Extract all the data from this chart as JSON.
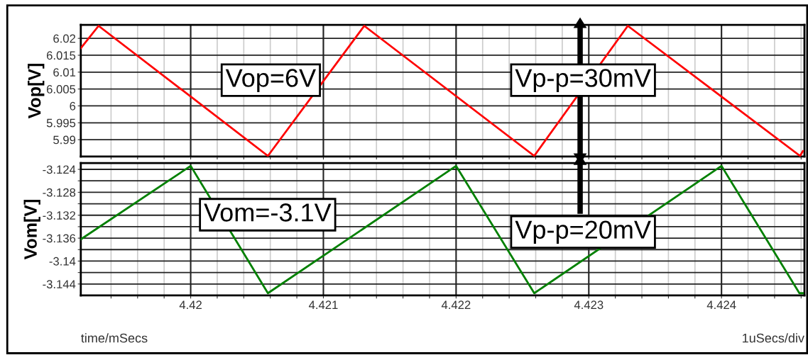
{
  "chart_data": [
    {
      "type": "line",
      "ylabel": "Vop[V]",
      "tick_labels": "y",
      "grid": true,
      "marker": "none",
      "line_style": "solid",
      "xlim": [
        4.419172,
        4.424625
      ],
      "ylim": [
        5.985,
        6.024
      ],
      "xticks": [
        {
          "value": 4.4194,
          "label": null
        },
        {
          "value": 4.4196,
          "label": null
        },
        {
          "value": 4.4198,
          "label": null
        },
        {
          "value": 4.42,
          "label": null
        },
        {
          "value": 4.4202,
          "label": null
        },
        {
          "value": 4.4204,
          "label": null
        },
        {
          "value": 4.4206,
          "label": null
        },
        {
          "value": 4.4208,
          "label": null
        },
        {
          "value": 4.421,
          "label": null
        },
        {
          "value": 4.4212,
          "label": null
        },
        {
          "value": 4.4214,
          "label": null
        },
        {
          "value": 4.4216,
          "label": null
        },
        {
          "value": 4.4218,
          "label": null
        },
        {
          "value": 4.422,
          "label": null
        },
        {
          "value": 4.4222,
          "label": null
        },
        {
          "value": 4.4224,
          "label": null
        },
        {
          "value": 4.4226,
          "label": null
        },
        {
          "value": 4.4228,
          "label": null
        },
        {
          "value": 4.423,
          "label": null
        },
        {
          "value": 4.4232,
          "label": null
        },
        {
          "value": 4.4234,
          "label": null
        },
        {
          "value": 4.4236,
          "label": null
        },
        {
          "value": 4.4238,
          "label": null
        },
        {
          "value": 4.424,
          "label": null
        },
        {
          "value": 4.4242,
          "label": null
        },
        {
          "value": 4.4244,
          "label": null
        },
        {
          "value": 4.4246,
          "label": null
        }
      ],
      "yticks": [
        5.99,
        5.995,
        6,
        6.005,
        6.01,
        6.015,
        6.02
      ],
      "x": [
        4.419172,
        4.419306,
        4.420582,
        4.421308,
        4.422589,
        4.423294,
        4.424592,
        4.424613
      ],
      "series": [
        {
          "color": "#ff0000",
          "values": [
            6.0171,
            6.0237,
            5.9852,
            6.0237,
            5.9852,
            6.0237,
            5.9852,
            5.9866
          ]
        }
      ],
      "annotations": [
        "Vop=6V",
        "Vp-p=30mV"
      ]
    },
    {
      "type": "line",
      "ylabel": "Vom[V]",
      "xlabel": "time/mSecs",
      "grid": true,
      "marker": "none",
      "line_style": "solid",
      "xlim": [
        4.419172,
        4.424625
      ],
      "ylim": [
        -3.146,
        -3.1229
      ],
      "xticks": [
        {
          "value": 4.4194,
          "label": null
        },
        {
          "value": 4.4196,
          "label": null
        },
        {
          "value": 4.4198,
          "label": null
        },
        4.42,
        {
          "value": 4.4202,
          "label": null
        },
        {
          "value": 4.4204,
          "label": null
        },
        {
          "value": 4.4206,
          "label": null
        },
        {
          "value": 4.4208,
          "label": null
        },
        4.421,
        {
          "value": 4.4212,
          "label": null
        },
        {
          "value": 4.4214,
          "label": null
        },
        {
          "value": 4.4216,
          "label": null
        },
        {
          "value": 4.4218,
          "label": null
        },
        4.422,
        {
          "value": 4.4222,
          "label": null
        },
        {
          "value": 4.4224,
          "label": null
        },
        {
          "value": 4.4226,
          "label": null
        },
        {
          "value": 4.4228,
          "label": null
        },
        4.423,
        {
          "value": 4.4232,
          "label": null
        },
        {
          "value": 4.4234,
          "label": null
        },
        {
          "value": 4.4236,
          "label": null
        },
        {
          "value": 4.4238,
          "label": null
        },
        4.424,
        {
          "value": 4.4242,
          "label": null
        },
        {
          "value": 4.4244,
          "label": null
        },
        {
          "value": 4.4246,
          "label": null
        }
      ],
      "yticks": [
        -3.144,
        {
          "value": -3.142,
          "label": null
        },
        -3.14,
        {
          "value": -3.138,
          "label": null
        },
        -3.136,
        {
          "value": -3.134,
          "label": null
        },
        -3.132,
        {
          "value": -3.13,
          "label": null
        },
        -3.128,
        {
          "value": -3.126,
          "label": null
        },
        -3.124
      ],
      "x": [
        4.419172,
        4.42,
        4.420582,
        4.422,
        4.422589,
        4.424,
        4.424587,
        4.424613
      ],
      "series": [
        {
          "color": "#008000",
          "values": [
            -3.1362,
            -3.1234,
            -3.1456,
            -3.1234,
            -3.1456,
            -3.1234,
            -3.1456,
            -3.1456
          ]
        }
      ],
      "annotations": [
        "Vom=-3.1V",
        "Vp-p=20mV",
        "1uSecs/div"
      ]
    }
  ]
}
